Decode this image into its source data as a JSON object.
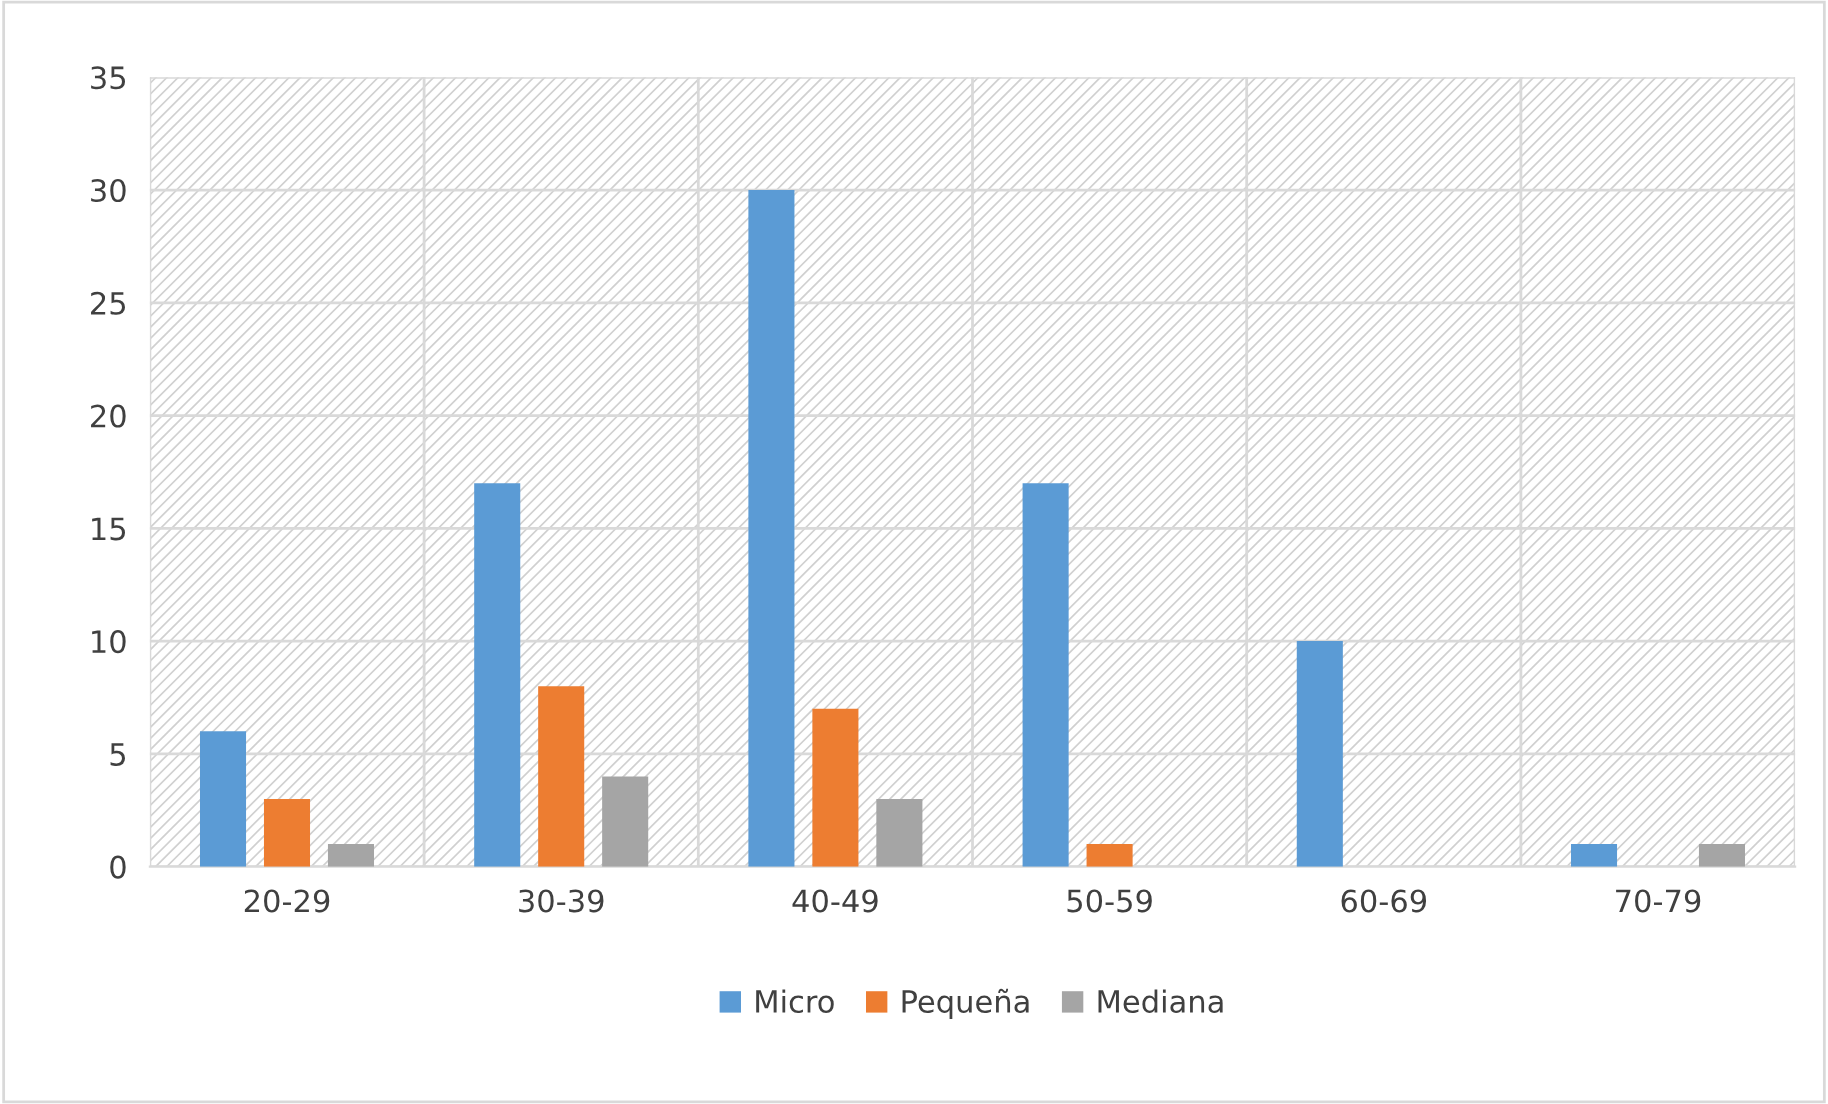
{
  "chart_data": {
    "type": "bar",
    "categories": [
      "20-29",
      "30-39",
      "40-49",
      "50-59",
      "60-69",
      "70-79"
    ],
    "series": [
      {
        "name": "Micro",
        "color": "#5b9bd5",
        "values": [
          6,
          17,
          30,
          17,
          10,
          1
        ]
      },
      {
        "name": "Pequeña",
        "color": "#ed7d31",
        "values": [
          3,
          8,
          7,
          1,
          0,
          0
        ]
      },
      {
        "name": "Mediana",
        "color": "#a5a5a5",
        "values": [
          1,
          4,
          3,
          0,
          0,
          1
        ]
      }
    ],
    "ylim": [
      0,
      35
    ],
    "yticks": [
      0,
      5,
      10,
      15,
      20,
      25,
      30,
      35
    ],
    "grid": true,
    "legend": "bottom"
  }
}
